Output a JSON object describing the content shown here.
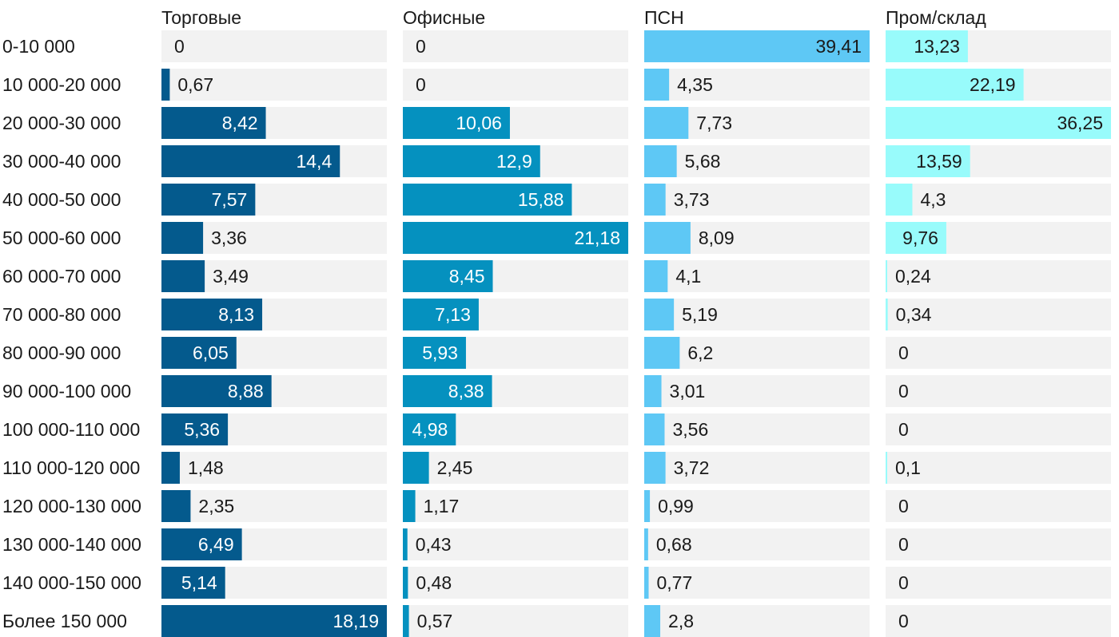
{
  "chart_data": {
    "type": "bar",
    "orientation": "horizontal",
    "layout": "small-multiples",
    "title": "",
    "categories": [
      "0-10 000",
      "10 000-20 000",
      "20 000-30 000",
      "30 000-40 000",
      "40 000-50 000",
      "50 000-60 000",
      "60 000-70 000",
      "70 000-80 000",
      "80 000-90 000",
      "90 000-100 000",
      "100 000-110 000",
      "110 000-120 000",
      "120 000-130 000",
      "130 000-140 000",
      "140 000-150 000",
      "Более 150 000"
    ],
    "series": [
      {
        "name": "Торговые",
        "color": "#045a8d",
        "xlim": [
          0,
          18.19
        ],
        "values": [
          0,
          0.67,
          8.42,
          14.4,
          7.57,
          3.36,
          3.49,
          8.13,
          6.05,
          8.88,
          5.36,
          1.48,
          2.35,
          6.49,
          5.14,
          18.19
        ],
        "labels": [
          "0",
          "0,67",
          "8,42",
          "14,4",
          "7,57",
          "3,36",
          "3,49",
          "8,13",
          "6,05",
          "8,88",
          "5,36",
          "1,48",
          "2,35",
          "6,49",
          "5,14",
          "18,19"
        ]
      },
      {
        "name": "Офисные",
        "color": "#0591bf",
        "xlim": [
          0,
          21.18
        ],
        "values": [
          0,
          0,
          10.06,
          12.9,
          15.88,
          21.18,
          8.45,
          7.13,
          5.93,
          8.38,
          4.98,
          2.45,
          1.17,
          0.43,
          0.48,
          0.57
        ],
        "labels": [
          "0",
          "0",
          "10,06",
          "12,9",
          "15,88",
          "21,18",
          "8,45",
          "7,13",
          "5,93",
          "8,38",
          "4,98",
          "2,45",
          "1,17",
          "0,43",
          "0,48",
          "0,57"
        ]
      },
      {
        "name": "ПСН",
        "color": "#5ec8f5",
        "xlim": [
          0,
          39.41
        ],
        "values": [
          39.41,
          4.35,
          7.73,
          5.68,
          3.73,
          8.09,
          4.1,
          5.19,
          6.2,
          3.01,
          3.56,
          3.72,
          0.99,
          0.68,
          0.77,
          2.8
        ],
        "labels": [
          "39,41",
          "4,35",
          "7,73",
          "5,68",
          "3,73",
          "8,09",
          "4,1",
          "5,19",
          "6,2",
          "3,01",
          "3,56",
          "3,72",
          "0,99",
          "0,68",
          "0,77",
          "2,8"
        ]
      },
      {
        "name": "Пром/склад",
        "color": "#98fbfb",
        "xlim": [
          0,
          36.25
        ],
        "values": [
          13.23,
          22.19,
          36.25,
          13.59,
          4.3,
          9.76,
          0.24,
          0.34,
          0,
          0,
          0,
          0.1,
          0,
          0,
          0,
          0
        ],
        "labels": [
          "13,23",
          "22,19",
          "36,25",
          "13,59",
          "4,3",
          "9,76",
          "0,24",
          "0,34",
          "0",
          "0",
          "0",
          "0,1",
          "0",
          "0",
          "0",
          "0"
        ]
      }
    ],
    "track_color": "#f2f2f2",
    "grid": false,
    "legend": "column headers"
  }
}
